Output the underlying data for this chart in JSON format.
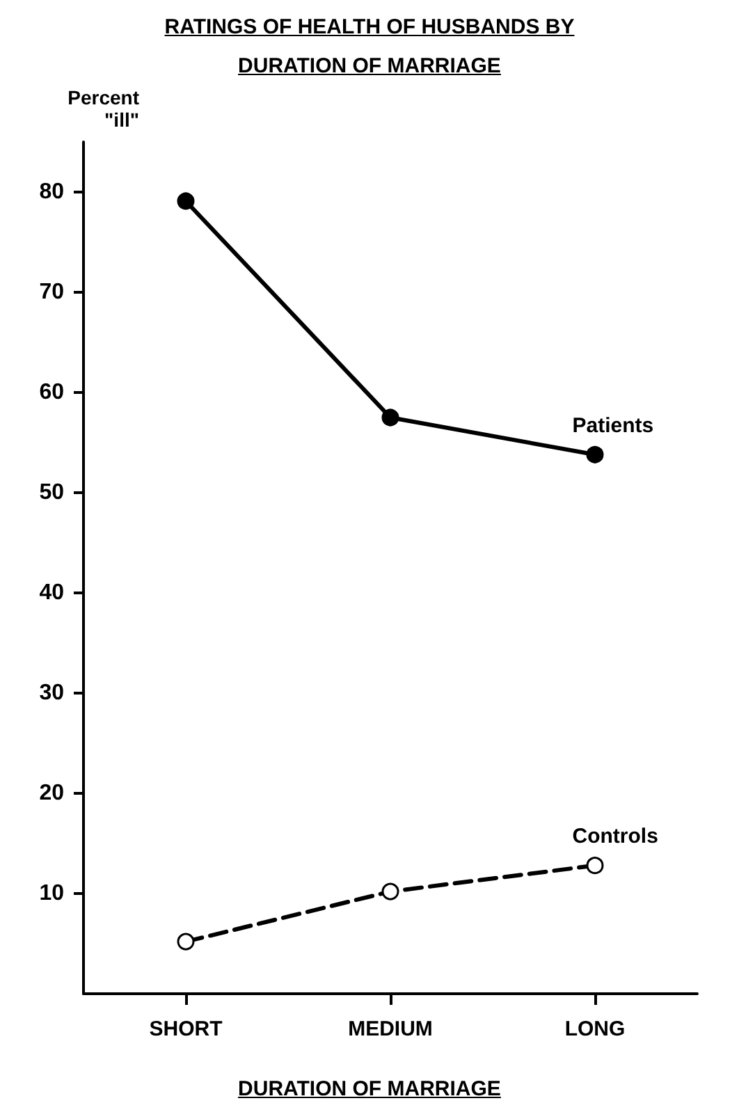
{
  "chart_data": {
    "type": "line",
    "title": "RATINGS OF HEALTH OF HUSBANDS BY\nDURATION OF MARRIAGE",
    "xlabel": "DURATION OF MARRIAGE",
    "ylabel": "Percent\n\"ill\"",
    "categories": [
      "SHORT",
      "MEDIUM",
      "LONG"
    ],
    "series": [
      {
        "name": "Patients",
        "color": "#000000",
        "values": [
          79.1,
          57.5,
          53.8
        ],
        "line_style": "solid"
      },
      {
        "name": "Controls",
        "color": "#000000",
        "values": [
          5.2,
          10.2,
          12.8
        ],
        "line_style": "dashed"
      }
    ],
    "ylim": [
      0,
      85
    ],
    "yticks": [
      10,
      20,
      30,
      40,
      50,
      60,
      70,
      80
    ],
    "grid": false,
    "legend": false,
    "marker": "circle"
  }
}
